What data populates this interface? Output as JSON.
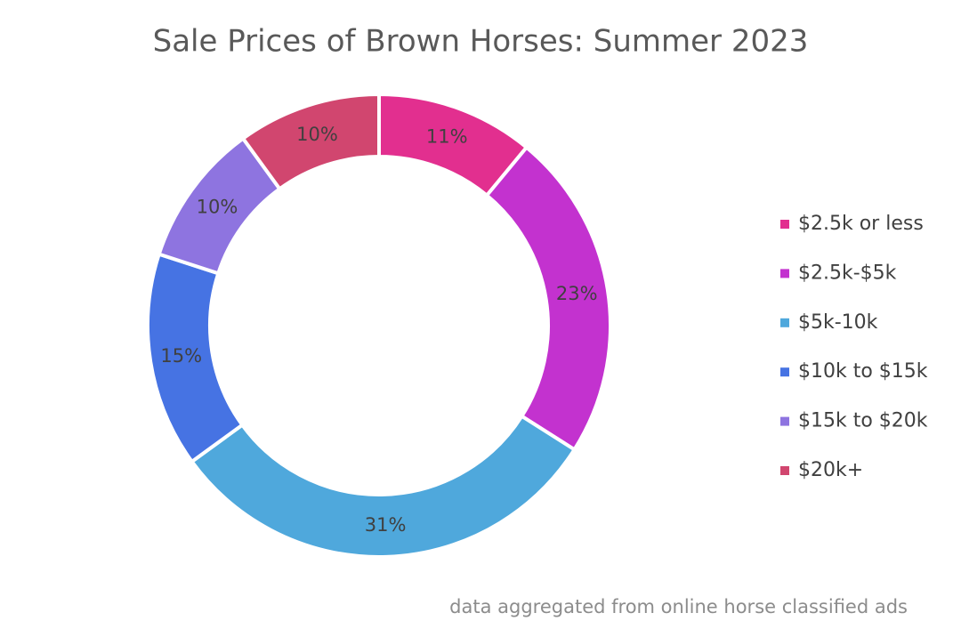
{
  "chart_data": {
    "type": "donut",
    "title": "Sale Prices of Brown Horses: Summer 2023",
    "annotation": "data aggregated from online horse classified ads",
    "categories": [
      "$2.5k or less",
      "$2.5k-$5k",
      "$5k-10k",
      "$10k to $15k",
      "$15k to $20k",
      "$20k+"
    ],
    "values": [
      11,
      23,
      31,
      15,
      10,
      10
    ],
    "value_labels": [
      "11%",
      "23%",
      "31%",
      "15%",
      "10%",
      "10%"
    ],
    "colors": [
      "#e22f8f",
      "#c332cf",
      "#4fa8dc",
      "#4673e3",
      "#8e74e0",
      "#d1466f"
    ],
    "legend": "right"
  }
}
